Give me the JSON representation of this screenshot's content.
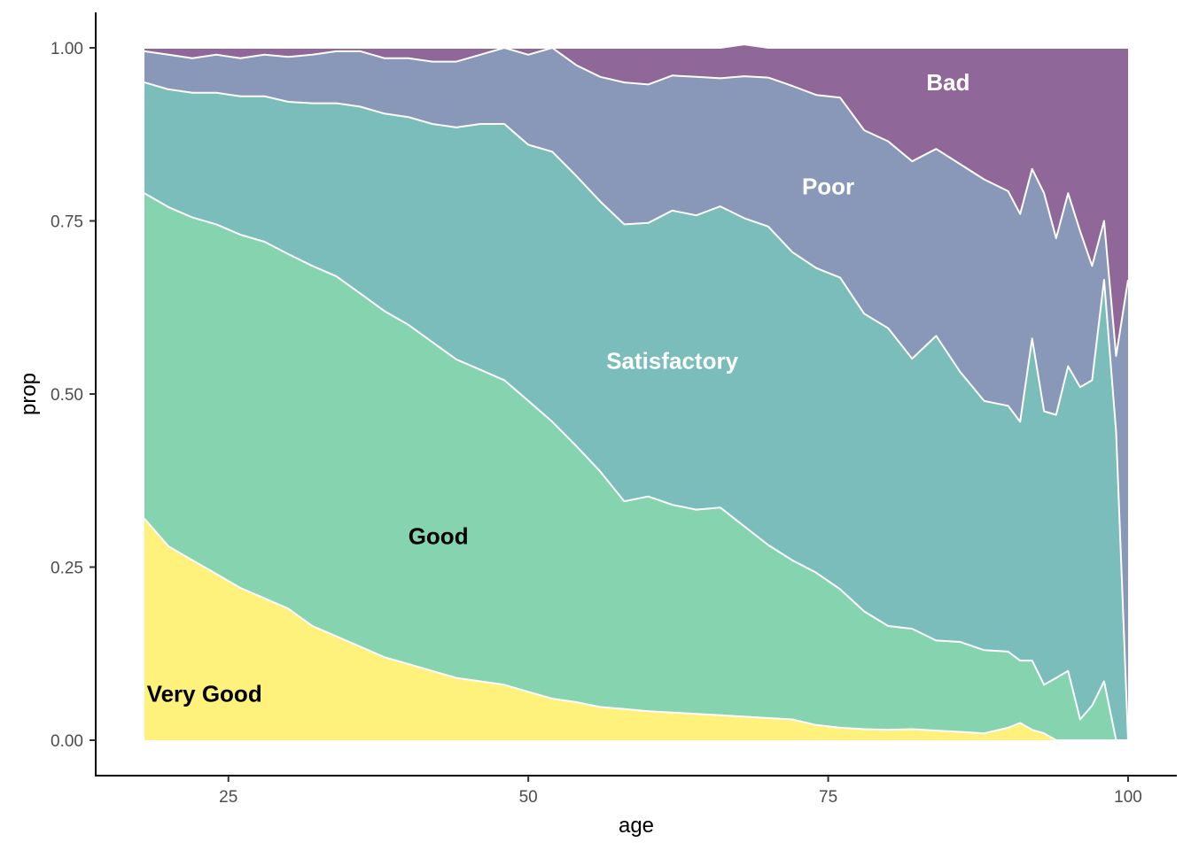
{
  "chart_data": {
    "type": "area",
    "stacked": true,
    "xlabel": "age",
    "ylabel": "prop",
    "xlim": [
      18,
      100
    ],
    "ylim": [
      0,
      1
    ],
    "xticks": [
      25,
      50,
      75,
      100
    ],
    "yticks": [
      0,
      0.25,
      0.5,
      0.75,
      1
    ],
    "xtick_labels": [
      "25",
      "50",
      "75",
      "100"
    ],
    "ytick_labels": [
      "0.00",
      "0.25",
      "0.50",
      "0.75",
      "1.00"
    ],
    "grid": false,
    "legend": "none",
    "x": [
      18,
      20,
      22,
      24,
      26,
      28,
      30,
      32,
      34,
      36,
      38,
      40,
      42,
      44,
      46,
      48,
      50,
      52,
      54,
      56,
      58,
      60,
      62,
      64,
      66,
      68,
      70,
      72,
      74,
      76,
      78,
      80,
      82,
      84,
      86,
      88,
      90,
      91,
      92,
      93,
      94,
      95,
      96,
      97,
      98,
      99,
      100
    ],
    "series": [
      {
        "name": "Very Good",
        "color": "#fde725",
        "label_color": "#000000",
        "label_at": [
          23,
          0.067
        ],
        "values": [
          0.32,
          0.28,
          0.26,
          0.24,
          0.22,
          0.205,
          0.19,
          0.165,
          0.15,
          0.135,
          0.12,
          0.11,
          0.1,
          0.09,
          0.085,
          0.08,
          0.07,
          0.06,
          0.055,
          0.048,
          0.045,
          0.042,
          0.04,
          0.038,
          0.036,
          0.034,
          0.032,
          0.03,
          0.022,
          0.018,
          0.016,
          0.015,
          0.016,
          0.014,
          0.012,
          0.01,
          0.018,
          0.025,
          0.015,
          0.01,
          0,
          0,
          0,
          0,
          0,
          0,
          0
        ]
      },
      {
        "name": "Good",
        "color": "#35b779",
        "label_color": "#000000",
        "label_at": [
          42.5,
          0.295
        ],
        "values": [
          0.47,
          0.49,
          0.495,
          0.505,
          0.51,
          0.515,
          0.512,
          0.52,
          0.52,
          0.51,
          0.5,
          0.49,
          0.475,
          0.46,
          0.45,
          0.44,
          0.42,
          0.4,
          0.37,
          0.34,
          0.3,
          0.31,
          0.3,
          0.295,
          0.3,
          0.275,
          0.25,
          0.23,
          0.22,
          0.2,
          0.17,
          0.15,
          0.145,
          0.13,
          0.13,
          0.12,
          0.11,
          0.09,
          0.1,
          0.07,
          0.09,
          0.1,
          0.03,
          0.05,
          0.085,
          0,
          0
        ]
      },
      {
        "name": "Satisfactory",
        "color": "#21918c",
        "label_color": "#ffffff",
        "label_at": [
          62,
          0.548
        ],
        "values": [
          0.16,
          0.17,
          0.18,
          0.19,
          0.2,
          0.21,
          0.22,
          0.235,
          0.25,
          0.27,
          0.285,
          0.3,
          0.315,
          0.335,
          0.355,
          0.37,
          0.37,
          0.39,
          0.39,
          0.39,
          0.4,
          0.395,
          0.425,
          0.425,
          0.435,
          0.445,
          0.46,
          0.445,
          0.44,
          0.45,
          0.43,
          0.43,
          0.39,
          0.44,
          0.39,
          0.36,
          0.355,
          0.345,
          0.465,
          0.395,
          0.38,
          0.44,
          0.48,
          0.47,
          0.58,
          0.445,
          0
        ]
      },
      {
        "name": "Poor",
        "color": "#3b528b",
        "label_color": "#ffffff",
        "label_at": [
          75,
          0.8
        ],
        "values": [
          0.045,
          0.05,
          0.05,
          0.055,
          0.055,
          0.06,
          0.065,
          0.07,
          0.075,
          0.08,
          0.08,
          0.085,
          0.09,
          0.095,
          0.1,
          0.11,
          0.13,
          0.15,
          0.16,
          0.18,
          0.205,
          0.2,
          0.195,
          0.2,
          0.185,
          0.205,
          0.215,
          0.24,
          0.25,
          0.26,
          0.265,
          0.27,
          0.285,
          0.27,
          0.3,
          0.32,
          0.31,
          0.3,
          0.245,
          0.315,
          0.255,
          0.25,
          0.225,
          0.165,
          0.085,
          0.11,
          0.665
        ]
      },
      {
        "name": "Bad",
        "color": "#440154",
        "label_color": "#ffffff",
        "label_at": [
          85,
          0.95
        ],
        "values": [
          0.005,
          0.01,
          0.015,
          0.01,
          0.015,
          0.01,
          0.013,
          0.01,
          0.005,
          0.005,
          0.015,
          0.015,
          0.02,
          0.02,
          0.01,
          0.0,
          0.01,
          0.0,
          0.025,
          0.042,
          0.05,
          0.053,
          0.04,
          0.042,
          0.044,
          0.046,
          0.043,
          0.055,
          0.068,
          0.072,
          0.119,
          0.135,
          0.164,
          0.146,
          0.168,
          0.19,
          0.207,
          0.24,
          0.175,
          0.21,
          0.275,
          0.21,
          0.265,
          0.315,
          0.25,
          0.445,
          0.335
        ]
      }
    ]
  }
}
